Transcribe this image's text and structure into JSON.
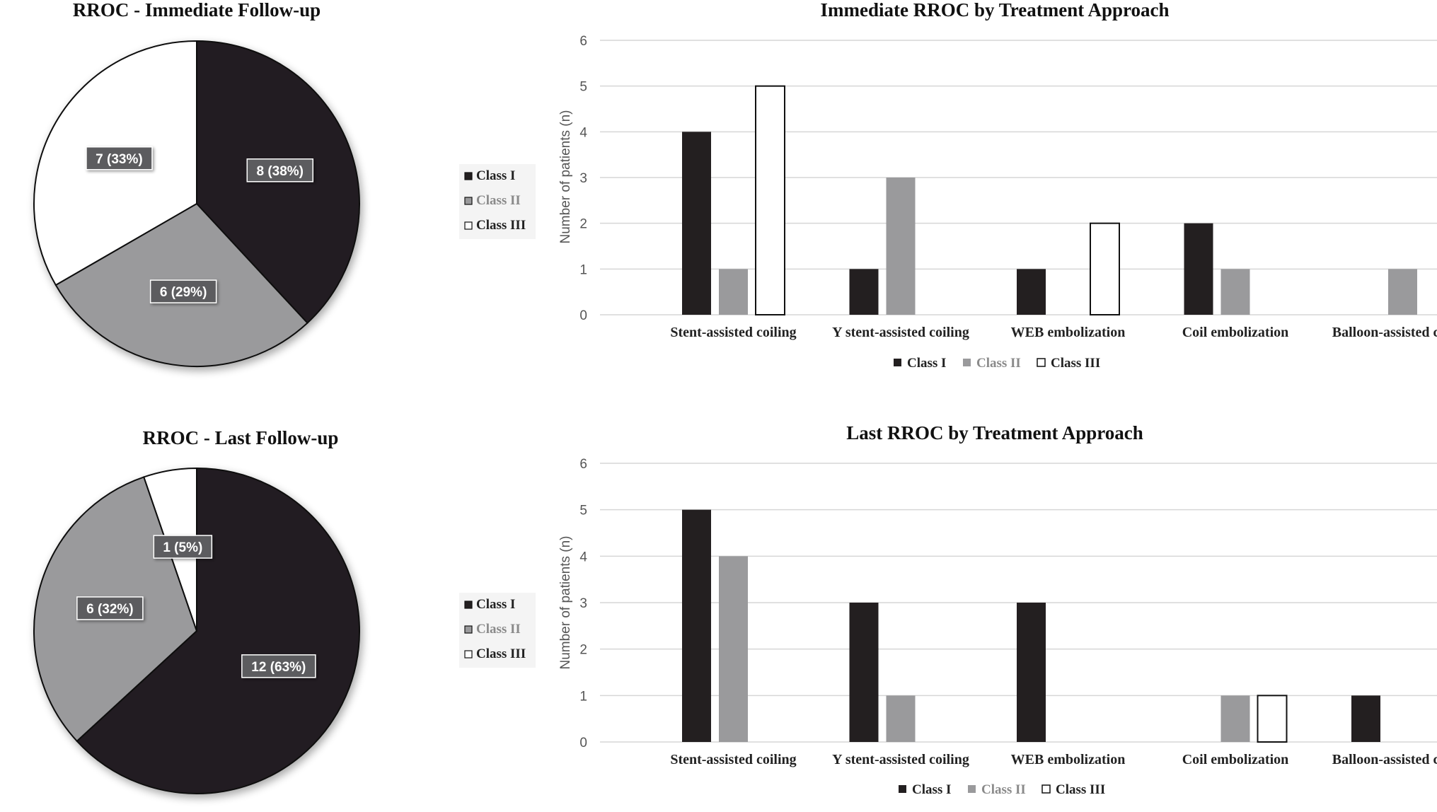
{
  "colors": {
    "class_i": "#231f20",
    "class_ii": "#9a9a9c",
    "class_iii": "#ffffff",
    "outline": "#111111",
    "grid": "#d6d6d6",
    "label_bg": "#5c5c5e"
  },
  "chart_data": [
    {
      "id": "pie_immediate",
      "type": "pie",
      "title": "RROC - Immediate Follow-up",
      "slices": [
        {
          "name": "Class I",
          "value": 8,
          "label": "8 (38%)"
        },
        {
          "name": "Class II",
          "value": 6,
          "label": "6 (29%)"
        },
        {
          "name": "Class III",
          "value": 7,
          "label": "7 (33%)"
        }
      ],
      "legend": [
        "Class I",
        "Class II",
        "Class III"
      ],
      "legend_position": "right"
    },
    {
      "id": "bar_immediate",
      "type": "bar",
      "title": "Immediate RROC by Treatment Approach",
      "ylabel": "Number of patients (n)",
      "ylim": [
        0,
        6
      ],
      "yticks": [
        "0",
        "1",
        "2",
        "3",
        "4",
        "5",
        "6"
      ],
      "categories": [
        "Stent-assisted coiling",
        "Y stent-assisted coiling",
        "WEB embolization",
        "Coil embolization",
        "Balloon-assisted coiling"
      ],
      "series": [
        {
          "name": "Class I",
          "values": [
            4,
            1,
            1,
            2,
            0
          ]
        },
        {
          "name": "Class II",
          "values": [
            1,
            3,
            0,
            1,
            1
          ]
        },
        {
          "name": "Class III",
          "values": [
            5,
            0,
            2,
            0,
            0
          ]
        }
      ],
      "legend_position": "bottom",
      "grid": true
    },
    {
      "id": "pie_last",
      "type": "pie",
      "title": "RROC - Last Follow-up",
      "slices": [
        {
          "name": "Class I",
          "value": 12,
          "label": "12 (63%)"
        },
        {
          "name": "Class II",
          "value": 6,
          "label": "6 (32%)"
        },
        {
          "name": "Class III",
          "value": 1,
          "label": "1 (5%)"
        }
      ],
      "legend": [
        "Class I",
        "Class II",
        "Class III"
      ],
      "legend_position": "right"
    },
    {
      "id": "bar_last",
      "type": "bar",
      "title": "Last RROC by Treatment Approach",
      "ylabel": "Number of patients (n)",
      "ylim": [
        0,
        6
      ],
      "yticks": [
        "0",
        "1",
        "2",
        "3",
        "4",
        "5",
        "6"
      ],
      "categories": [
        "Stent-assisted coiling",
        "Y stent-assisted coiling",
        "WEB embolization",
        "Coil embolization",
        "Balloon-assisted coiling"
      ],
      "series": [
        {
          "name": "Class I",
          "values": [
            5,
            3,
            3,
            0,
            1
          ]
        },
        {
          "name": "Class II",
          "values": [
            4,
            1,
            0,
            1,
            0
          ]
        },
        {
          "name": "Class III",
          "values": [
            0,
            0,
            0,
            1,
            0
          ]
        }
      ],
      "legend_position": "bottom",
      "grid": true
    }
  ]
}
